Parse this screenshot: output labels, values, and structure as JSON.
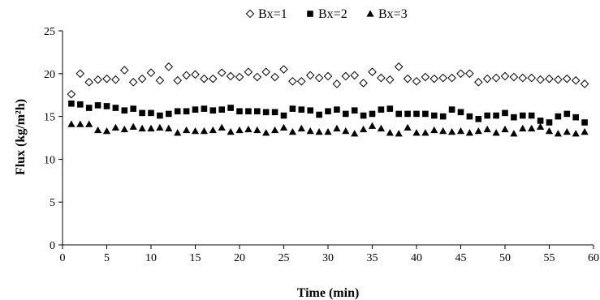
{
  "chart_data": {
    "type": "scatter",
    "title": "",
    "xlabel": "Time (min)",
    "ylabel": "Flux (kg/m²h)",
    "xlim": [
      0,
      60
    ],
    "ylim": [
      0,
      25
    ],
    "x_ticks": [
      0,
      5,
      10,
      15,
      20,
      25,
      30,
      35,
      40,
      45,
      50,
      55,
      60
    ],
    "y_ticks": [
      0,
      5,
      10,
      15,
      20,
      25
    ],
    "grid": false,
    "legend_position": "top-center",
    "x": [
      1,
      2,
      3,
      4,
      5,
      6,
      7,
      8,
      9,
      10,
      11,
      12,
      13,
      14,
      15,
      16,
      17,
      18,
      19,
      20,
      21,
      22,
      23,
      24,
      25,
      26,
      27,
      28,
      29,
      30,
      31,
      32,
      33,
      34,
      35,
      36,
      37,
      38,
      39,
      40,
      41,
      42,
      43,
      44,
      45,
      46,
      47,
      48,
      49,
      50,
      51,
      52,
      53,
      54,
      55,
      56,
      57,
      58,
      59
    ],
    "series": [
      {
        "name": "Bx=1",
        "marker": "diamond-open",
        "values": [
          17.6,
          20.0,
          19.0,
          19.3,
          19.4,
          19.3,
          20.4,
          19.0,
          19.4,
          20.1,
          19.2,
          20.8,
          19.2,
          19.8,
          19.9,
          19.4,
          19.4,
          20.1,
          19.7,
          19.6,
          20.2,
          19.6,
          20.2,
          19.6,
          20.5,
          19.1,
          19.1,
          19.8,
          19.5,
          19.7,
          18.8,
          19.7,
          19.8,
          18.9,
          20.2,
          19.5,
          19.3,
          20.8,
          19.4,
          19.1,
          19.6,
          19.4,
          19.5,
          19.5,
          20.0,
          20.0,
          19.0,
          19.4,
          19.5,
          19.7,
          19.6,
          19.5,
          19.5,
          19.3,
          19.4,
          19.3,
          19.4,
          19.2,
          18.8
        ]
      },
      {
        "name": "Bx=2",
        "marker": "square-filled",
        "values": [
          16.5,
          16.4,
          16.0,
          16.3,
          16.2,
          16.0,
          15.7,
          15.9,
          15.4,
          15.4,
          15.1,
          15.3,
          15.6,
          15.6,
          15.8,
          15.9,
          15.7,
          15.8,
          16.0,
          15.6,
          15.6,
          15.6,
          15.5,
          15.5,
          15.1,
          15.9,
          15.8,
          15.7,
          15.2,
          15.6,
          15.8,
          15.3,
          15.7,
          15.1,
          15.3,
          15.8,
          15.9,
          15.3,
          15.3,
          15.3,
          15.3,
          15.1,
          15.0,
          15.8,
          15.5,
          15.0,
          14.7,
          15.1,
          15.1,
          15.4,
          14.9,
          15.1,
          15.1,
          14.5,
          14.3,
          15.0,
          15.3,
          14.9,
          14.3
        ]
      },
      {
        "name": "Bx=3",
        "marker": "triangle-filled",
        "values": [
          14.1,
          14.1,
          14.1,
          13.4,
          13.3,
          13.7,
          13.5,
          13.8,
          13.6,
          13.6,
          13.7,
          13.6,
          13.1,
          13.4,
          13.3,
          13.3,
          13.4,
          13.7,
          13.2,
          13.4,
          13.5,
          13.4,
          13.1,
          13.4,
          13.7,
          13.2,
          13.6,
          13.3,
          13.2,
          13.2,
          13.6,
          13.3,
          13.0,
          13.5,
          13.9,
          13.6,
          13.1,
          13.0,
          13.7,
          13.1,
          13.1,
          13.4,
          13.3,
          13.2,
          13.3,
          13.1,
          13.3,
          13.5,
          13.1,
          13.5,
          13.0,
          13.6,
          13.6,
          13.8,
          13.3,
          13.0,
          13.2,
          13.0,
          13.2
        ]
      }
    ]
  }
}
